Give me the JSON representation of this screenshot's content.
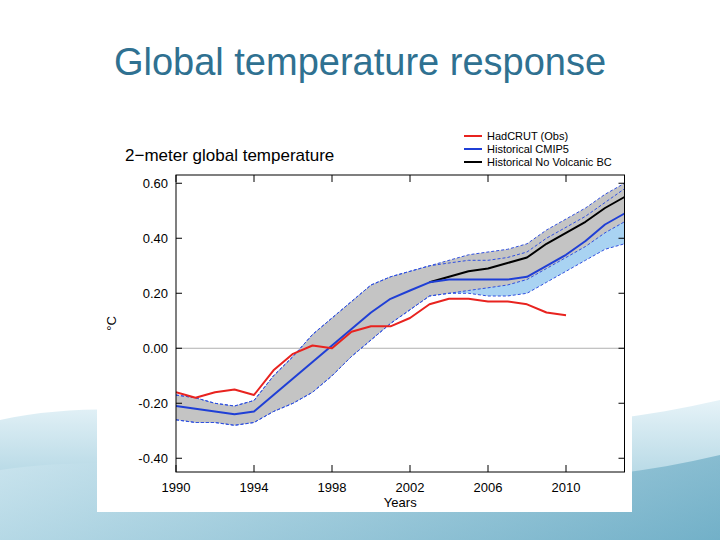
{
  "slide": {
    "title": "Global temperature response"
  },
  "chart_data": {
    "type": "line",
    "title": "2−meter global temperature",
    "x_label": "Years",
    "y_label": "°C",
    "x": [
      1990,
      1991,
      1992,
      1993,
      1994,
      1995,
      1996,
      1997,
      1998,
      1999,
      2000,
      2001,
      2002,
      2003,
      2004,
      2005,
      2006,
      2007,
      2008,
      2009,
      2010,
      2011,
      2012,
      2013
    ],
    "xlim": [
      1990,
      2013
    ],
    "xticks": [
      1990,
      1994,
      1998,
      2002,
      2006,
      2010
    ],
    "ylim": [
      -0.45,
      0.63
    ],
    "yticks": [
      {
        "value": -0.4,
        "label": "-0.40"
      },
      {
        "value": -0.2,
        "label": "-0.20"
      },
      {
        "value": 0,
        "label": "0.00"
      },
      {
        "value": 0.2,
        "label": "0.20"
      },
      {
        "value": 0.4,
        "label": "0.40"
      },
      {
        "value": 0.6,
        "label": "0.60"
      }
    ],
    "grid": false,
    "legend": "top-right",
    "series": [
      {
        "name": "HadCRUT (Obs)",
        "color": "#e8231f",
        "values": [
          -0.16,
          -0.18,
          -0.16,
          -0.15,
          -0.17,
          -0.08,
          -0.02,
          0.01,
          0.0,
          0.06,
          0.08,
          0.08,
          0.11,
          0.16,
          0.18,
          0.18,
          0.17,
          0.17,
          0.16,
          0.13,
          0.12,
          null,
          null,
          null
        ]
      },
      {
        "name": "Historical CMIP5",
        "color": "#1f3fd6",
        "values": [
          -0.21,
          -0.22,
          -0.23,
          -0.24,
          -0.23,
          -0.17,
          -0.11,
          -0.05,
          0.01,
          0.07,
          0.13,
          0.18,
          0.21,
          0.24,
          0.25,
          0.25,
          0.25,
          0.25,
          0.26,
          0.3,
          0.34,
          0.39,
          0.45,
          0.49
        ],
        "lower": [
          -0.26,
          -0.27,
          -0.27,
          -0.28,
          -0.27,
          -0.23,
          -0.2,
          -0.16,
          -0.1,
          -0.03,
          0.03,
          0.09,
          0.14,
          0.19,
          0.2,
          0.2,
          0.19,
          0.19,
          0.2,
          0.24,
          0.28,
          0.32,
          0.36,
          0.38
        ],
        "upper": [
          -0.17,
          -0.18,
          -0.2,
          -0.21,
          -0.19,
          -0.1,
          -0.03,
          0.05,
          0.11,
          0.17,
          0.23,
          0.26,
          0.28,
          0.3,
          0.31,
          0.32,
          0.32,
          0.33,
          0.35,
          0.4,
          0.44,
          0.48,
          0.53,
          0.58
        ]
      },
      {
        "name": "Historical No Volcanic BC",
        "color": "#000000",
        "values": [
          null,
          null,
          null,
          null,
          null,
          null,
          null,
          null,
          null,
          null,
          null,
          null,
          null,
          0.24,
          0.26,
          0.28,
          0.29,
          0.31,
          0.33,
          0.38,
          0.42,
          0.46,
          0.51,
          0.55
        ],
        "lower": [
          -0.26,
          -0.27,
          -0.27,
          -0.28,
          -0.27,
          -0.23,
          -0.2,
          -0.16,
          -0.1,
          -0.03,
          0.03,
          0.09,
          0.14,
          0.19,
          0.2,
          0.21,
          0.22,
          0.23,
          0.25,
          0.29,
          0.33,
          0.37,
          0.42,
          0.46
        ],
        "upper": [
          -0.17,
          -0.18,
          -0.2,
          -0.21,
          -0.19,
          -0.1,
          -0.03,
          0.05,
          0.11,
          0.17,
          0.23,
          0.26,
          0.28,
          0.3,
          0.32,
          0.34,
          0.35,
          0.36,
          0.38,
          0.43,
          0.47,
          0.51,
          0.56,
          0.6
        ]
      }
    ]
  }
}
